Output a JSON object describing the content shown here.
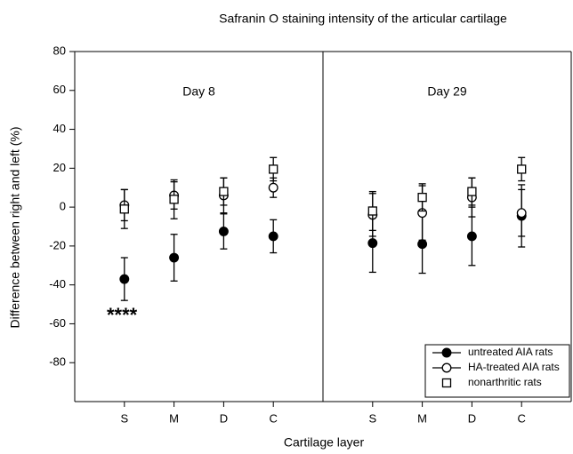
{
  "chart_data": {
    "type": "errorbar",
    "title": "Safranin O staining intensity of the articular cartilage",
    "xlabel": "Cartilage layer",
    "ylabel": "Difference between right and left (%)",
    "panels": [
      "Day 8",
      "Day 29"
    ],
    "categories": [
      "S",
      "M",
      "D",
      "C",
      "S",
      "M",
      "D",
      "C"
    ],
    "series": [
      {
        "name": "untreated AIA rats",
        "marker": "filled-circle",
        "color": "#000000",
        "values": [
          -37,
          -26,
          -12.5,
          -15,
          -18.5,
          -19,
          -15,
          -4.5
        ],
        "errors": [
          11,
          12,
          9,
          8.5,
          15,
          15,
          15,
          16
        ]
      },
      {
        "name": "HA-treated AIA rats",
        "marker": "open-circle",
        "color": "#000000",
        "values": [
          1,
          6,
          6,
          10,
          -4,
          -3,
          5,
          -3
        ],
        "errors": [
          8,
          7,
          9,
          5,
          11,
          14,
          10,
          12
        ]
      },
      {
        "name": "nonarthritic rats",
        "marker": "open-square",
        "color": "#000000",
        "values": [
          -1,
          4,
          8,
          19.5,
          -2,
          5,
          8,
          19.5
        ],
        "errors": [
          10,
          10,
          7,
          6,
          10,
          7,
          7,
          6
        ]
      }
    ],
    "annotation": "****",
    "ylim": [
      -100,
      80
    ],
    "yticks": [
      -80,
      -60,
      -40,
      -20,
      0,
      20,
      40,
      60,
      80
    ],
    "legend": "lower right"
  }
}
